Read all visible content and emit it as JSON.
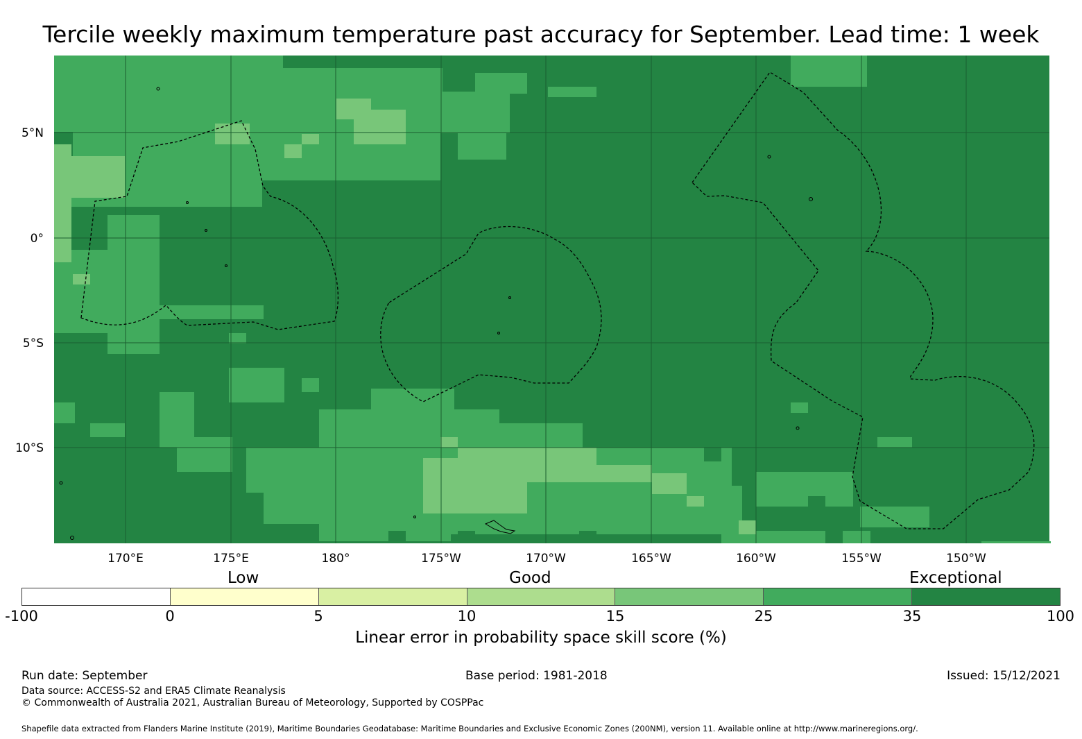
{
  "title": "Tercile weekly maximum temperature past accuracy for September. Lead time: 1 week",
  "map": {
    "lon_ticks": [
      "170°E",
      "175°E",
      "180°",
      "175°W",
      "170°W",
      "165°W",
      "160°W",
      "155°W",
      "150°W"
    ],
    "lat_ticks": [
      "5°N",
      "0°",
      "5°S",
      "10°S"
    ],
    "grid_spec": [
      "0000000000000000000000000000000000000000000000000000000",
      "0000000000000000000000000000000000000000000000000000000",
      "0000000000000000000000000000000000000000000000000000000",
      "0000000000000000000000000000000000000000000000000000000",
      "1111111111111111111111111111111111111111111111111111111"
    ]
  },
  "categories": {
    "low": "Low",
    "good": "Good",
    "exceptional": "Exceptional"
  },
  "colorbar": {
    "bins": [
      {
        "from": "-100",
        "to": "0",
        "color": "#ffffff"
      },
      {
        "from": "0",
        "to": "5",
        "color": "#ffffcc"
      },
      {
        "from": "5",
        "to": "10",
        "color": "#d9f0a3"
      },
      {
        "from": "10",
        "to": "15",
        "color": "#addd8e"
      },
      {
        "from": "15",
        "to": "25",
        "color": "#78c679"
      },
      {
        "from": "25",
        "to": "35",
        "color": "#41ab5d"
      },
      {
        "from": "35",
        "to": "100",
        "color": "#238443"
      }
    ],
    "labels": [
      "-100",
      "0",
      "5",
      "10",
      "15",
      "25",
      "35",
      "100"
    ],
    "title": "Linear error in probability space skill score (%)"
  },
  "footer": {
    "run_date": "Run date: September",
    "base_period": "Base period: 1981-2018",
    "issued": "Issued: 15/12/2021",
    "data_source": "Data source: ACCESS-S2 and ERA5 Climate Reanalysis",
    "copyright": "© Commonwealth of Australia 2021, Australian Bureau of Meteorology, Supported by COSPPac",
    "shapefile": "Shapefile data extracted from Flanders Marine Institute (2019), Maritime Boundaries Geodatabase: Maritime Boundaries and Exclusive Economic Zones (200NM), version 11. Available online at http://www.marineregions.org/."
  }
}
